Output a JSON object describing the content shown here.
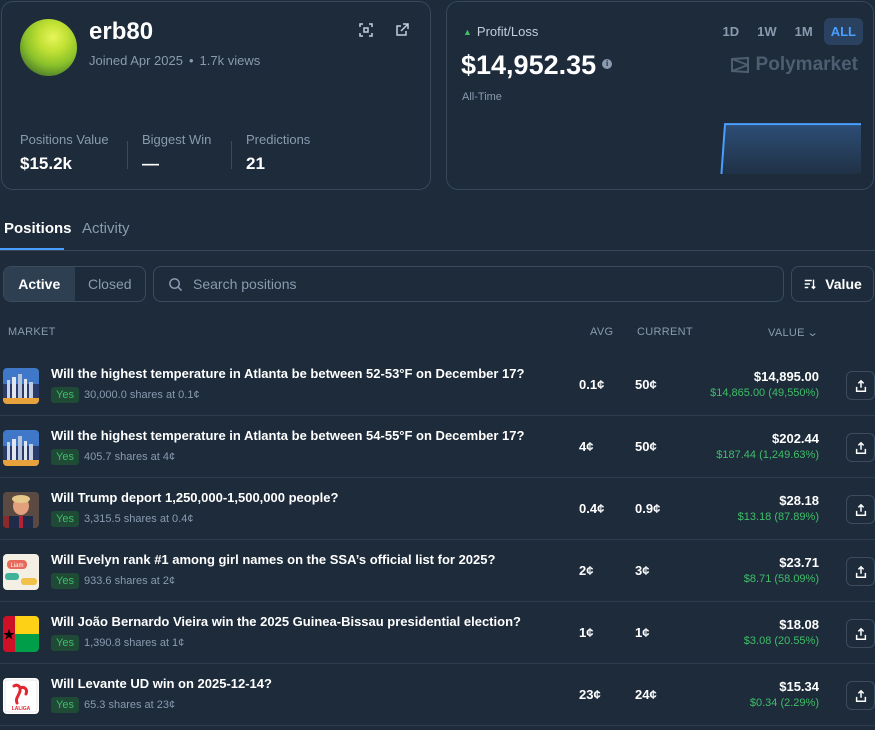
{
  "profile": {
    "username": "erb80",
    "joined": "Joined Apr 2025",
    "views": "1.7k views",
    "stats": [
      {
        "label": "Positions Value",
        "value": "$15.2k"
      },
      {
        "label": "Biggest Win",
        "value": "—"
      },
      {
        "label": "Predictions",
        "value": "21"
      }
    ],
    "icons": [
      "qr-code-icon",
      "external-link-icon"
    ]
  },
  "pnl": {
    "label": "Profit/Loss",
    "amount": "$14,952.35",
    "period": "All-Time",
    "ranges": [
      "1D",
      "1W",
      "1M",
      "ALL"
    ],
    "active_range": "ALL",
    "brand": "Polymarket",
    "chart_data": {
      "type": "area",
      "x": [
        0,
        0.04,
        0.1,
        0.3,
        0.5,
        0.6,
        0.65,
        0.66,
        0.8,
        1.0
      ],
      "values": [
        0.45,
        0.5,
        0.45,
        0.45,
        0.45,
        0.45,
        0.45,
        14952.35,
        14952.35,
        14952.35
      ],
      "ylim": [
        0,
        15000
      ],
      "grid": false,
      "colors": {
        "before": "#9b5cf6",
        "after": "#4a9eff"
      }
    }
  },
  "tabs": [
    "Positions",
    "Activity"
  ],
  "filters": {
    "segments": [
      "Active",
      "Closed"
    ],
    "search_placeholder": "Search positions",
    "sort_label": "Value"
  },
  "table": {
    "headers": {
      "market": "MARKET",
      "avg": "AVG",
      "current": "CURRENT",
      "value": "VALUE"
    },
    "rows": [
      {
        "question": "Will the highest temperature in Atlanta be between 52-53°F on December 17?",
        "outcome": "Yes",
        "shares": "30,000.0 shares at 0.1¢",
        "avg": "0.1¢",
        "current": "50¢",
        "value": "$14,895.00",
        "pnl": "$14,865.00 (49,550%)",
        "thumb": "atlanta"
      },
      {
        "question": "Will the highest temperature in Atlanta be between 54-55°F on December 17?",
        "outcome": "Yes",
        "shares": "405.7 shares at 4¢",
        "avg": "4¢",
        "current": "50¢",
        "value": "$202.44",
        "pnl": "$187.44 (1,249.63%)",
        "thumb": "atlanta"
      },
      {
        "question": "Will Trump deport 1,250,000-1,500,000 people?",
        "outcome": "Yes",
        "shares": "3,315.5 shares at 0.4¢",
        "avg": "0.4¢",
        "current": "0.9¢",
        "value": "$28.18",
        "pnl": "$13.18 (87.89%)",
        "thumb": "trump"
      },
      {
        "question": "Will Evelyn rank #1 among girl names on the SSA’s official list for 2025?",
        "outcome": "Yes",
        "shares": "933.6 shares at 2¢",
        "avg": "2¢",
        "current": "3¢",
        "value": "$23.71",
        "pnl": "$8.71 (58.09%)",
        "thumb": "names"
      },
      {
        "question": "Will João Bernardo Vieira win the 2025 Guinea-Bissau presidential election?",
        "outcome": "Yes",
        "shares": "1,390.8 shares at 1¢",
        "avg": "1¢",
        "current": "1¢",
        "value": "$18.08",
        "pnl": "$3.08 (20.55%)",
        "thumb": "flag"
      },
      {
        "question": "Will Levante UD win on 2025-12-14?",
        "outcome": "Yes",
        "shares": "65.3 shares at 23¢",
        "avg": "23¢",
        "current": "24¢",
        "value": "$15.34",
        "pnl": "$0.34 (2.29%)",
        "thumb": "laliga"
      }
    ]
  },
  "thumb_labels": {
    "names_text": "Liam",
    "laliga_text": "LALIGA"
  }
}
